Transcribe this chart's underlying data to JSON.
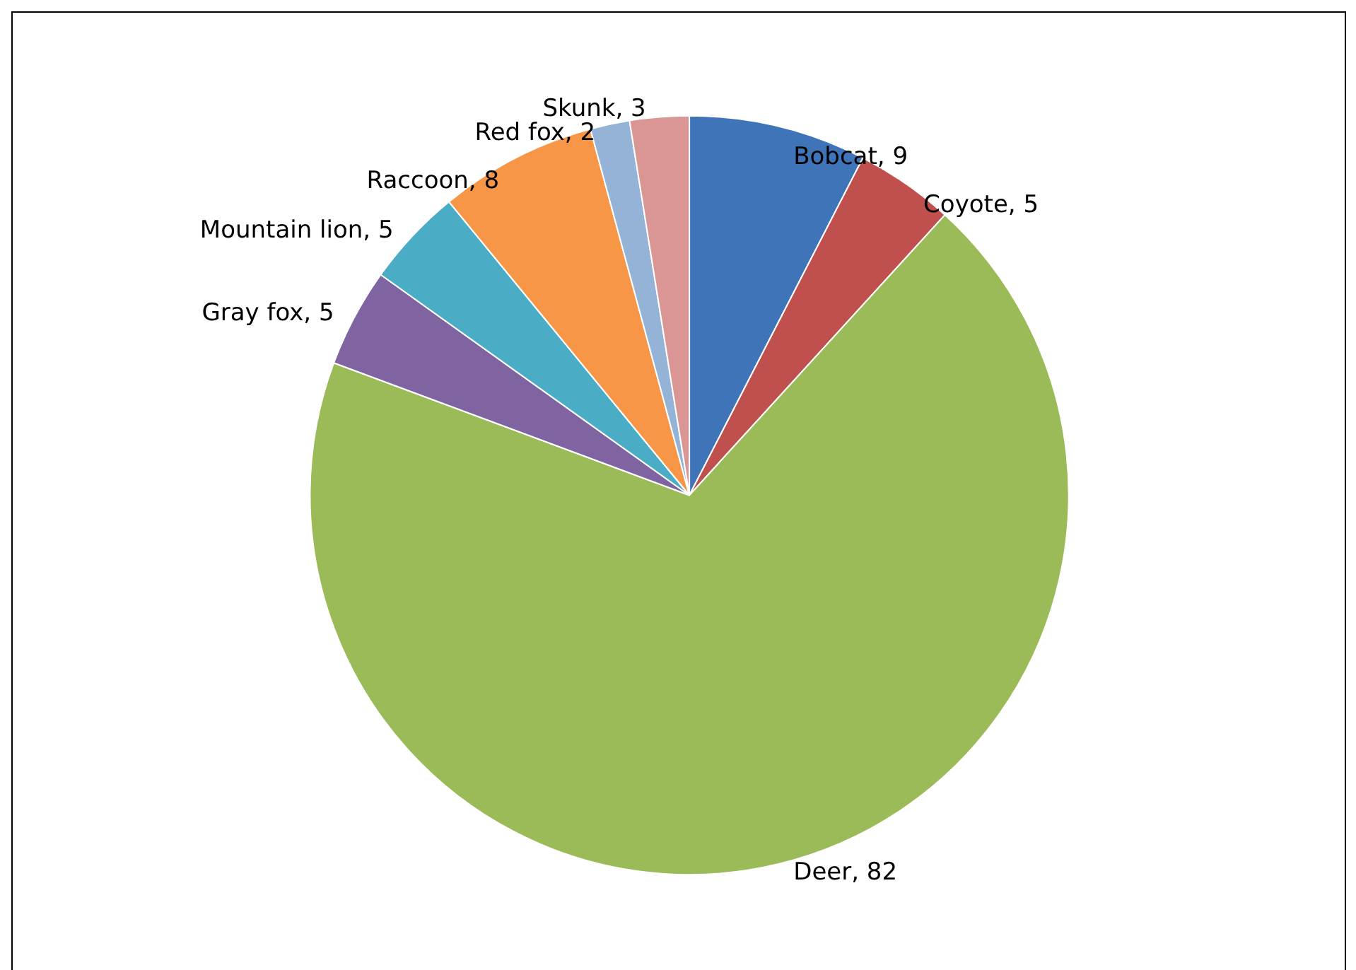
{
  "chart_data": {
    "type": "pie",
    "categories": [
      "Bobcat",
      "Coyote",
      "Deer",
      "Gray fox",
      "Mountain lion",
      "Raccoon",
      "Red fox",
      "Skunk"
    ],
    "values": [
      9,
      5,
      82,
      5,
      5,
      8,
      2,
      3
    ],
    "colors": [
      "#3f74b9",
      "#c0504d",
      "#9bbb59",
      "#8064a2",
      "#4bacc6",
      "#f79646",
      "#95b3d7",
      "#d99694"
    ],
    "value_labels": [
      ", 9",
      ", 5",
      ", 82",
      ", 5",
      ", 5",
      ", 8",
      ", 2",
      ", 3"
    ],
    "legend": false
  }
}
